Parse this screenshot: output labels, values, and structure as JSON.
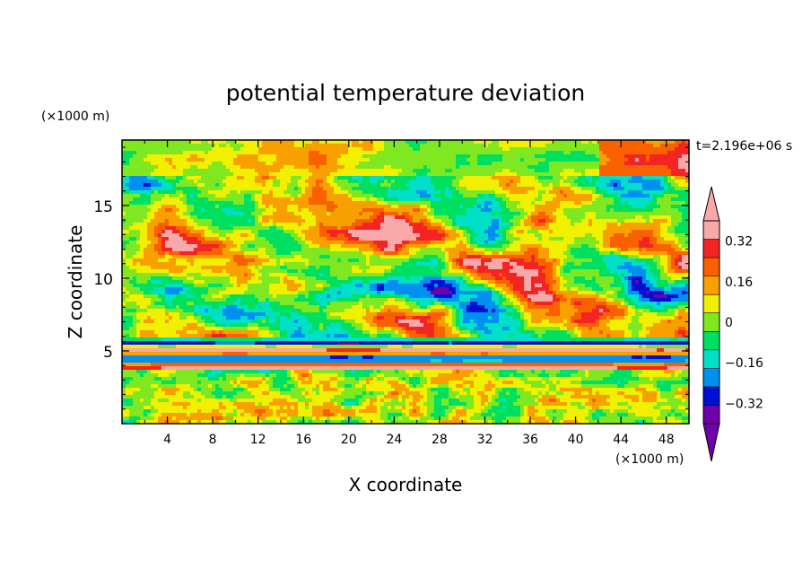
{
  "chart_data": {
    "type": "heatmap",
    "title": "potential temperature deviation",
    "xlabel": "X coordinate",
    "ylabel": "Z coordinate",
    "x_unit": "(×1000 m)",
    "y_unit": "(×1000 m)",
    "time_label": "t=2.196e+06 s",
    "xlim": [
      0,
      50
    ],
    "ylim": [
      0,
      19.5
    ],
    "x_ticks": [
      4,
      8,
      12,
      16,
      20,
      24,
      28,
      32,
      36,
      40,
      44,
      48
    ],
    "y_ticks": [
      5,
      10,
      15
    ],
    "colorbar": {
      "levels": [
        -0.4,
        -0.32,
        -0.24,
        -0.16,
        -0.08,
        0,
        0.08,
        0.16,
        0.24,
        0.32,
        0.4
      ],
      "tick_labels": [
        "0.32",
        "0.16",
        "0",
        "−0.16",
        "−0.32"
      ],
      "tick_values": [
        0.32,
        0.16,
        0,
        -0.16,
        -0.32
      ],
      "colors": [
        "#f8a8a8",
        "#f42424",
        "#f86000",
        "#f8a000",
        "#f0f000",
        "#80e820",
        "#00e060",
        "#00e0c8",
        "#0090f0",
        "#0010d0",
        "#7000a8"
      ],
      "over_color": "#f8a8a8",
      "under_color": "#7000a8"
    }
  }
}
